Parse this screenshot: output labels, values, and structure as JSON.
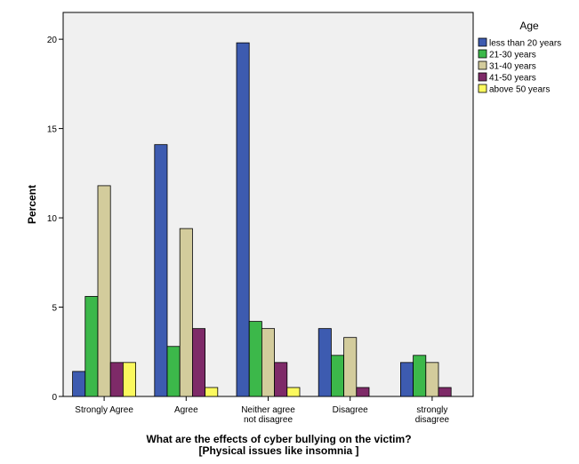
{
  "chart_data": {
    "type": "bar",
    "categories": [
      [
        "Strongly Agree"
      ],
      [
        "Agree"
      ],
      [
        "Neither agree",
        "not disagree"
      ],
      [
        "Disagree"
      ],
      [
        "strongly",
        "disagree"
      ]
    ],
    "series": [
      {
        "name": "less than 20 years",
        "color": "#3d5bb0",
        "values": [
          1.4,
          14.1,
          19.8,
          3.8,
          1.9
        ]
      },
      {
        "name": "21-30 years",
        "color": "#3cb84a",
        "values": [
          5.6,
          2.8,
          4.2,
          2.3,
          2.3
        ]
      },
      {
        "name": "31-40 years",
        "color": "#d3cc9c",
        "values": [
          11.8,
          9.4,
          3.8,
          3.3,
          1.9
        ]
      },
      {
        "name": "41-50 years",
        "color": "#7e2a68",
        "values": [
          1.9,
          3.8,
          1.9,
          0.5,
          0.5
        ]
      },
      {
        "name": "above 50 years",
        "color": "#fbf95e",
        "values": [
          1.9,
          0.5,
          0.5,
          0.0,
          0.0
        ]
      }
    ],
    "title": "",
    "xlabel": [
      "What are the effects of cyber bullying on the victim?",
      "[Physical issues like insomnia ]"
    ],
    "ylabel": "Percent",
    "ylim": [
      0,
      21.5
    ],
    "yticks": [
      0,
      5,
      10,
      15,
      20
    ],
    "legend": {
      "title": "Age",
      "placement": "top-right-outside"
    },
    "grid": false
  }
}
